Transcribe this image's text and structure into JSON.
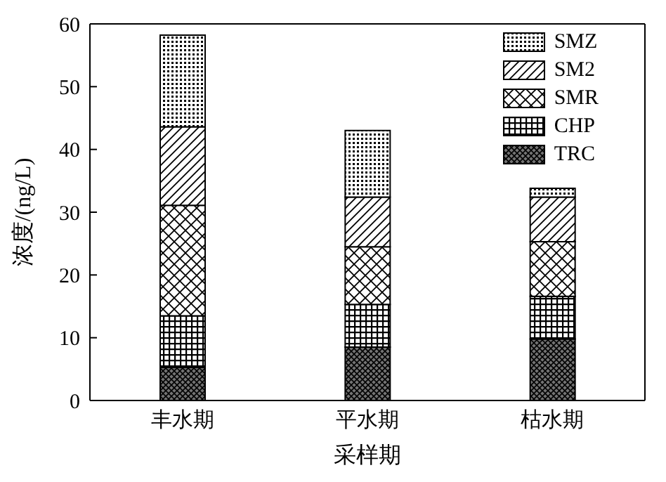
{
  "chart_data": {
    "type": "bar",
    "stacked": true,
    "xlabel": "采样期",
    "ylabel": "浓度/(ng/L)",
    "categories": [
      "丰水期",
      "平水期",
      "枯水期"
    ],
    "series": [
      {
        "name": "TRC",
        "color": "#000000",
        "values": [
          5.3,
          8.5,
          9.8
        ]
      },
      {
        "name": "CHP",
        "color": "#000000",
        "values": [
          8.2,
          6.8,
          6.8
        ]
      },
      {
        "name": "SMR",
        "color": "#000000",
        "values": [
          17.6,
          9.2,
          8.7
        ]
      },
      {
        "name": "SM2",
        "color": "#000000",
        "values": [
          12.5,
          7.9,
          7.1
        ]
      },
      {
        "name": "SMZ",
        "color": "#000000",
        "values": [
          14.6,
          10.6,
          1.4
        ]
      }
    ],
    "ylim": [
      0,
      60
    ],
    "yticks": [
      0,
      10,
      20,
      30,
      40,
      50,
      60
    ],
    "grid": false,
    "legend": "top right"
  }
}
